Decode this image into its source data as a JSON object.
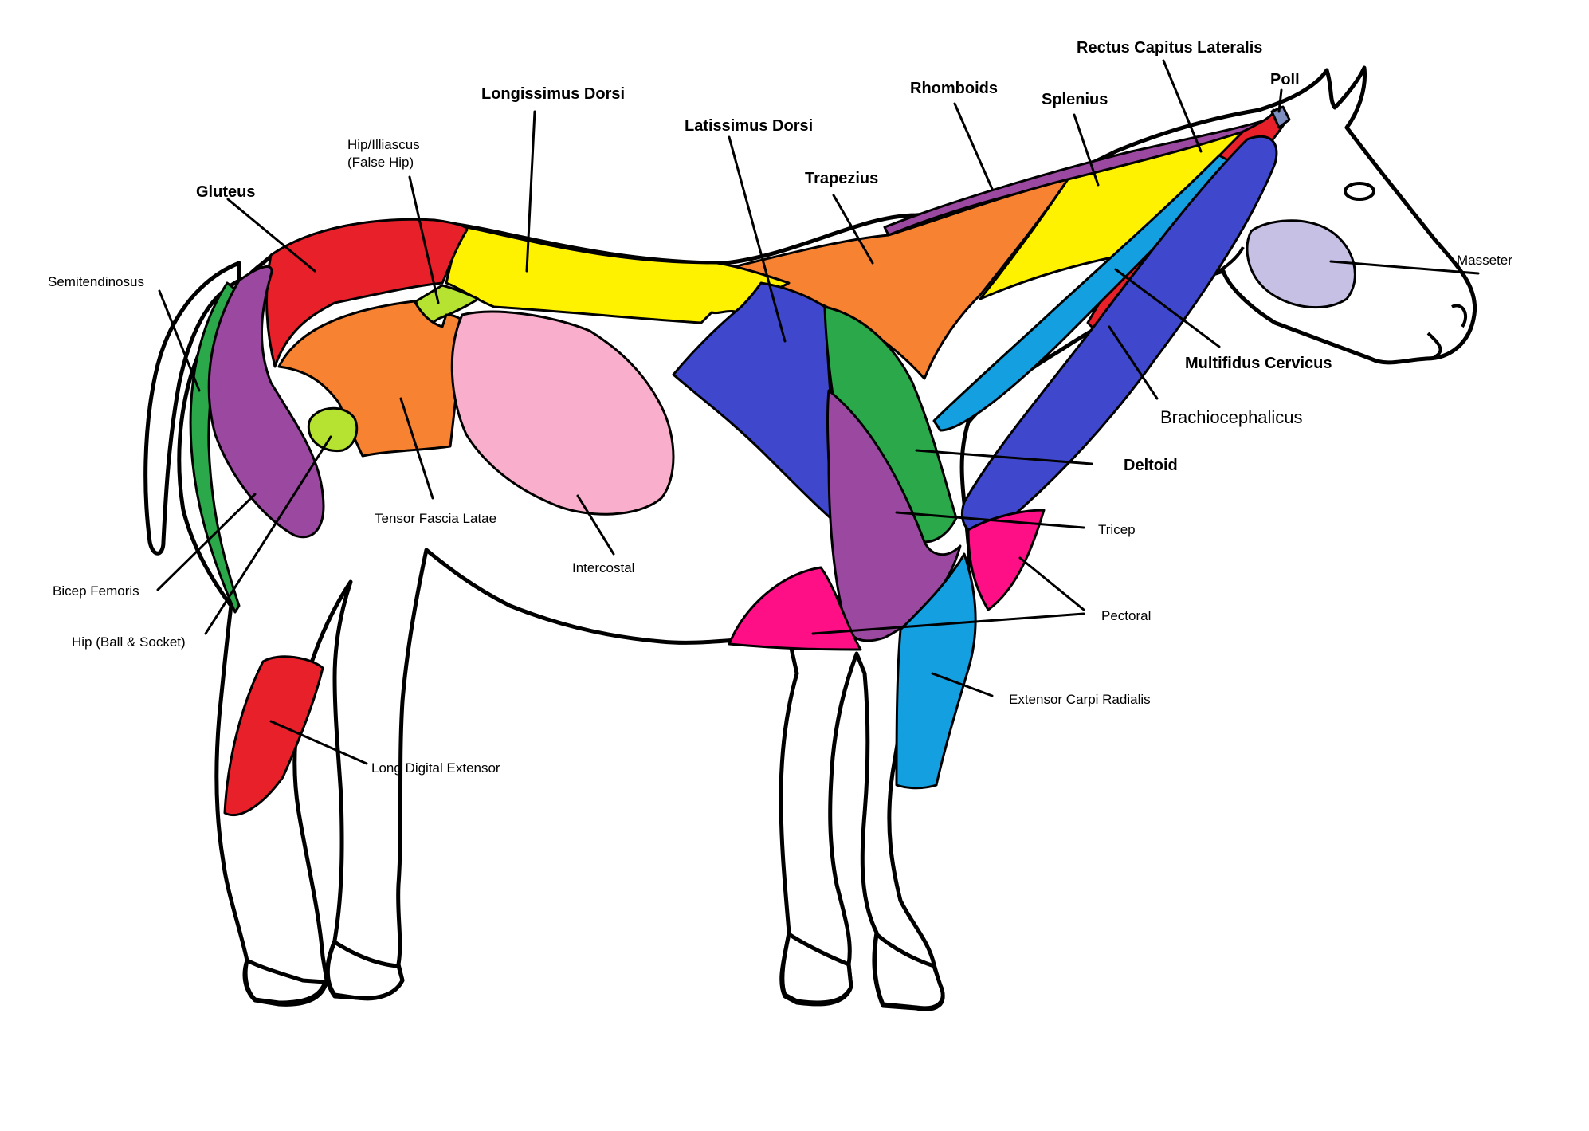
{
  "labels": {
    "rectus_capitus_lateralis": "Rectus Capitus Lateralis",
    "poll": "Poll",
    "longissimus_dorsi": "Longissimus Dorsi",
    "rhomboids": "Rhomboids",
    "splenius": "Splenius",
    "latissimus_dorsi": "Latissimus Dorsi",
    "hip_illiascus_line1": "Hip/Illiascus",
    "hip_illiascus_line2": "(False Hip)",
    "trapezius": "Trapezius",
    "gluteus": "Gluteus",
    "masseter": "Masseter",
    "semitendinosus": "Semitendinosus",
    "multifidus_cervicus": "Multifidus Cervicus",
    "brachiocephalicus": "Brachiocephalicus",
    "deltoid": "Deltoid",
    "tensor_fascia_latae": "Tensor Fascia Latae",
    "tricep": "Tricep",
    "intercostal": "Intercostal",
    "bicep_femoris": "Bicep Femoris",
    "pectoral": "Pectoral",
    "hip_ball_socket": "Hip (Ball & Socket)",
    "extensor_carpi_radialis": "Extensor Carpi Radialis",
    "long_digital_extensor": "Long Digital Extensor"
  },
  "colors": {
    "outline": "#000000",
    "red": "#e8202a",
    "yellow": "#fff200",
    "orange": "#f78232",
    "purple": "#9b49a0",
    "green": "#2aa84a",
    "blue": "#3f48cc",
    "light_blue": "#14a0e0",
    "pink": "#f9afcb",
    "magenta": "#ff0f85",
    "lime": "#b6e332",
    "lavender": "#c6c0e4",
    "slate": "#7e8ec0"
  }
}
